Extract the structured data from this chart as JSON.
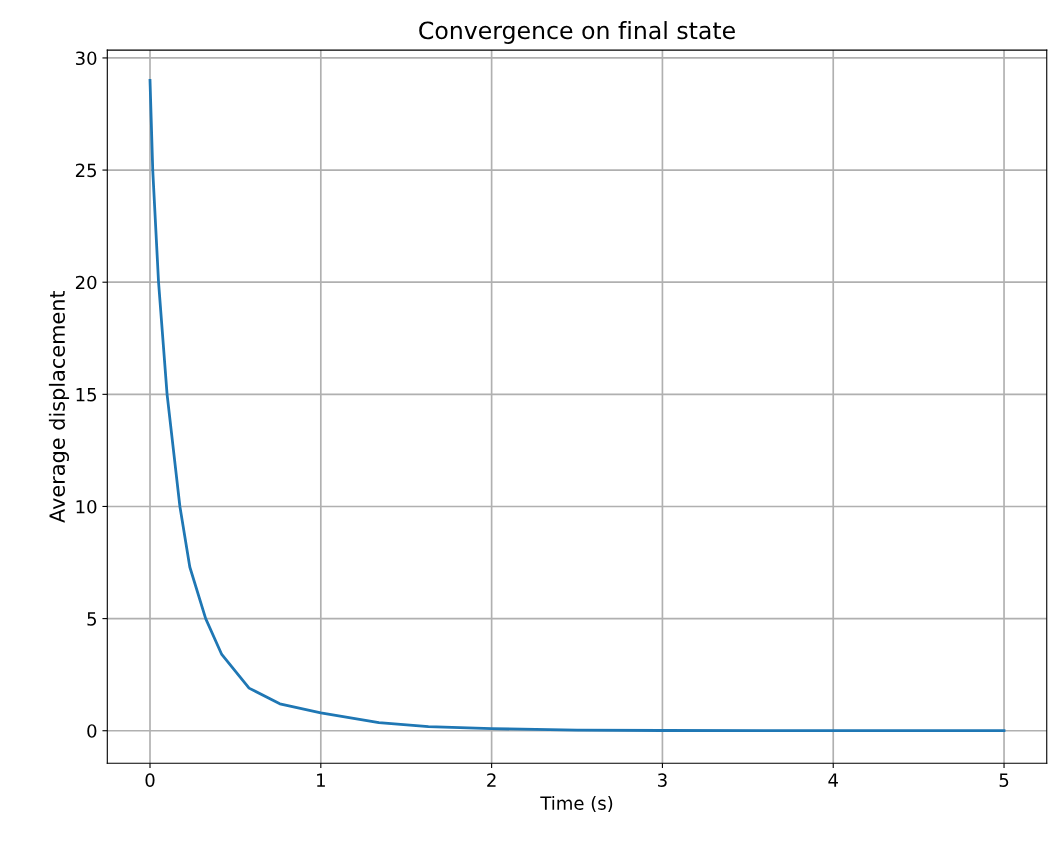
{
  "chart_data": {
    "type": "line",
    "title": "Convergence on final state",
    "xlabel": "Time (s)",
    "ylabel": "Average displacement",
    "x": [
      0,
      0.016,
      0.05,
      0.1,
      0.175,
      0.233,
      0.326,
      0.42,
      0.58,
      0.76,
      1.0,
      1.34,
      1.63,
      2.0,
      2.5,
      3.0,
      4.0,
      5.0
    ],
    "series": [
      {
        "color": "#1f77b4",
        "values": [
          29.0,
          25,
          20,
          15,
          10,
          7.3,
          5,
          3.4,
          1.9,
          1.2,
          0.8,
          0.36,
          0.18,
          0.09,
          0.03,
          0.01,
          0,
          0
        ]
      }
    ],
    "xlim": [
      -0.25,
      5.25
    ],
    "ylim": [
      -1.45,
      30.35
    ],
    "xticks": [
      0,
      1,
      2,
      3,
      4,
      5
    ],
    "yticks": [
      0,
      5,
      10,
      15,
      20,
      25,
      30
    ],
    "grid": true,
    "marker": "none",
    "line_style": "solid"
  }
}
